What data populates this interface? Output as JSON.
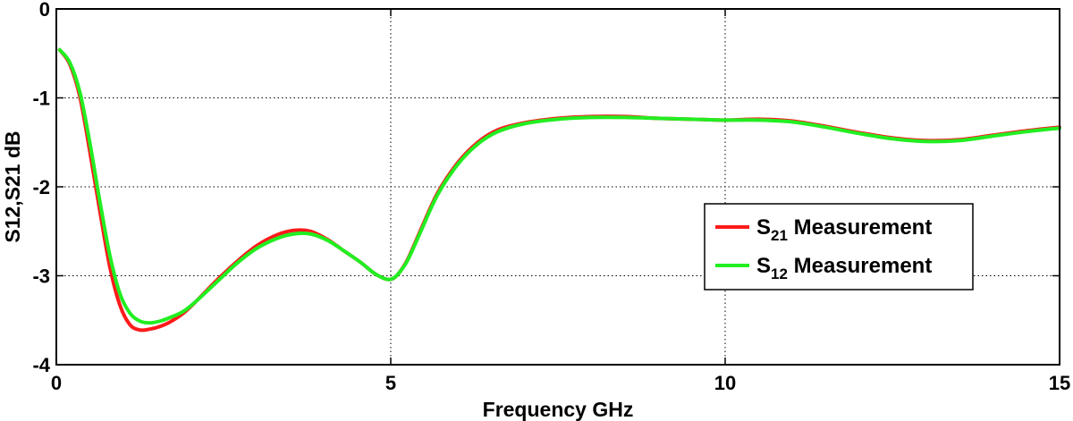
{
  "chart_data": {
    "type": "line",
    "title": "",
    "xlabel": "Frequency GHz",
    "ylabel": "S12,S21 dB",
    "xlim": [
      0,
      15
    ],
    "ylim": [
      -4,
      0
    ],
    "xticks": [
      0,
      5,
      10,
      15
    ],
    "yticks": [
      0,
      -1,
      -2,
      -3,
      -4
    ],
    "grid": true,
    "grid_style": "dotted",
    "legend_position": "right",
    "series": [
      {
        "name_main": "S",
        "name_sub": "21",
        "name_rest": " Measurement",
        "color": "#ff1a1a",
        "x": [
          0.05,
          0.2,
          0.35,
          0.5,
          0.65,
          0.8,
          0.95,
          1.1,
          1.25,
          1.4,
          1.55,
          1.7,
          1.9,
          2.1,
          2.4,
          2.7,
          3.0,
          3.3,
          3.55,
          3.8,
          4.05,
          4.3,
          4.55,
          4.75,
          4.9,
          5.0,
          5.1,
          5.25,
          5.45,
          5.7,
          6.0,
          6.3,
          6.6,
          7.0,
          7.5,
          8.0,
          8.5,
          9.0,
          9.5,
          10.0,
          10.5,
          11.0,
          11.5,
          12.0,
          12.5,
          13.0,
          13.5,
          14.0,
          14.5,
          15.0
        ],
        "y": [
          -0.46,
          -0.62,
          -0.98,
          -1.6,
          -2.27,
          -2.9,
          -3.33,
          -3.55,
          -3.61,
          -3.6,
          -3.57,
          -3.52,
          -3.42,
          -3.28,
          -3.05,
          -2.84,
          -2.66,
          -2.54,
          -2.49,
          -2.5,
          -2.59,
          -2.72,
          -2.85,
          -2.97,
          -3.03,
          -3.04,
          -2.99,
          -2.82,
          -2.48,
          -2.07,
          -1.73,
          -1.5,
          -1.36,
          -1.28,
          -1.23,
          -1.21,
          -1.21,
          -1.23,
          -1.24,
          -1.25,
          -1.24,
          -1.26,
          -1.32,
          -1.39,
          -1.45,
          -1.48,
          -1.47,
          -1.42,
          -1.37,
          -1.33
        ]
      },
      {
        "name_main": "S",
        "name_sub": "12",
        "name_rest": " Measurement",
        "color": "#22ee22",
        "x": [
          0.05,
          0.2,
          0.35,
          0.5,
          0.65,
          0.8,
          0.95,
          1.1,
          1.25,
          1.4,
          1.55,
          1.7,
          1.9,
          2.1,
          2.4,
          2.7,
          3.0,
          3.3,
          3.55,
          3.8,
          4.05,
          4.3,
          4.55,
          4.75,
          4.9,
          5.0,
          5.1,
          5.25,
          5.45,
          5.7,
          6.0,
          6.3,
          6.6,
          7.0,
          7.5,
          8.0,
          8.5,
          9.0,
          9.5,
          10.0,
          10.5,
          11.0,
          11.5,
          12.0,
          12.5,
          13.0,
          13.5,
          14.0,
          14.5,
          15.0
        ],
        "y": [
          -0.46,
          -0.6,
          -0.93,
          -1.5,
          -2.16,
          -2.77,
          -3.2,
          -3.42,
          -3.51,
          -3.53,
          -3.51,
          -3.47,
          -3.4,
          -3.28,
          -3.07,
          -2.86,
          -2.69,
          -2.58,
          -2.53,
          -2.53,
          -2.6,
          -2.72,
          -2.85,
          -2.97,
          -3.03,
          -3.04,
          -2.99,
          -2.83,
          -2.5,
          -2.09,
          -1.75,
          -1.52,
          -1.38,
          -1.29,
          -1.24,
          -1.22,
          -1.22,
          -1.23,
          -1.24,
          -1.25,
          -1.25,
          -1.27,
          -1.33,
          -1.4,
          -1.46,
          -1.49,
          -1.48,
          -1.43,
          -1.38,
          -1.34
        ]
      }
    ]
  }
}
